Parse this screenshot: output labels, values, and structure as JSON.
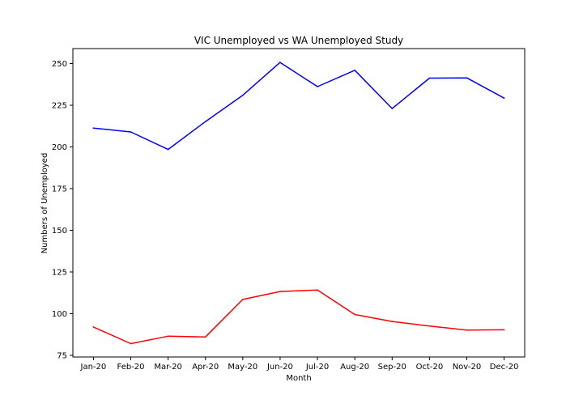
{
  "chart_data": {
    "type": "line",
    "title": "VIC Unemployed vs WA Unemployed Study",
    "xlabel": "Month",
    "ylabel": "Numbers of Unemployed",
    "categories": [
      "Jan-20",
      "Feb-20",
      "Mar-20",
      "Apr-20",
      "May-20",
      "Jun-20",
      "Jul-20",
      "Aug-20",
      "Sep-20",
      "Oct-20",
      "Nov-20",
      "Dec-20"
    ],
    "ylim": [
      74,
      259
    ],
    "yticks": [
      75,
      100,
      125,
      150,
      175,
      200,
      225,
      250
    ],
    "grid": false,
    "legend": "none",
    "series": [
      {
        "color": "#0000ff",
        "values": [
          211.3,
          209.0,
          198.5,
          215.2,
          231.0,
          250.7,
          236.2,
          246.0,
          223.0,
          241.3,
          241.4,
          229.3
        ]
      },
      {
        "color": "#ff0000",
        "values": [
          92.0,
          82.0,
          86.5,
          86.0,
          108.5,
          113.3,
          114.2,
          99.5,
          95.3,
          92.6,
          90.1,
          90.3
        ]
      }
    ]
  }
}
